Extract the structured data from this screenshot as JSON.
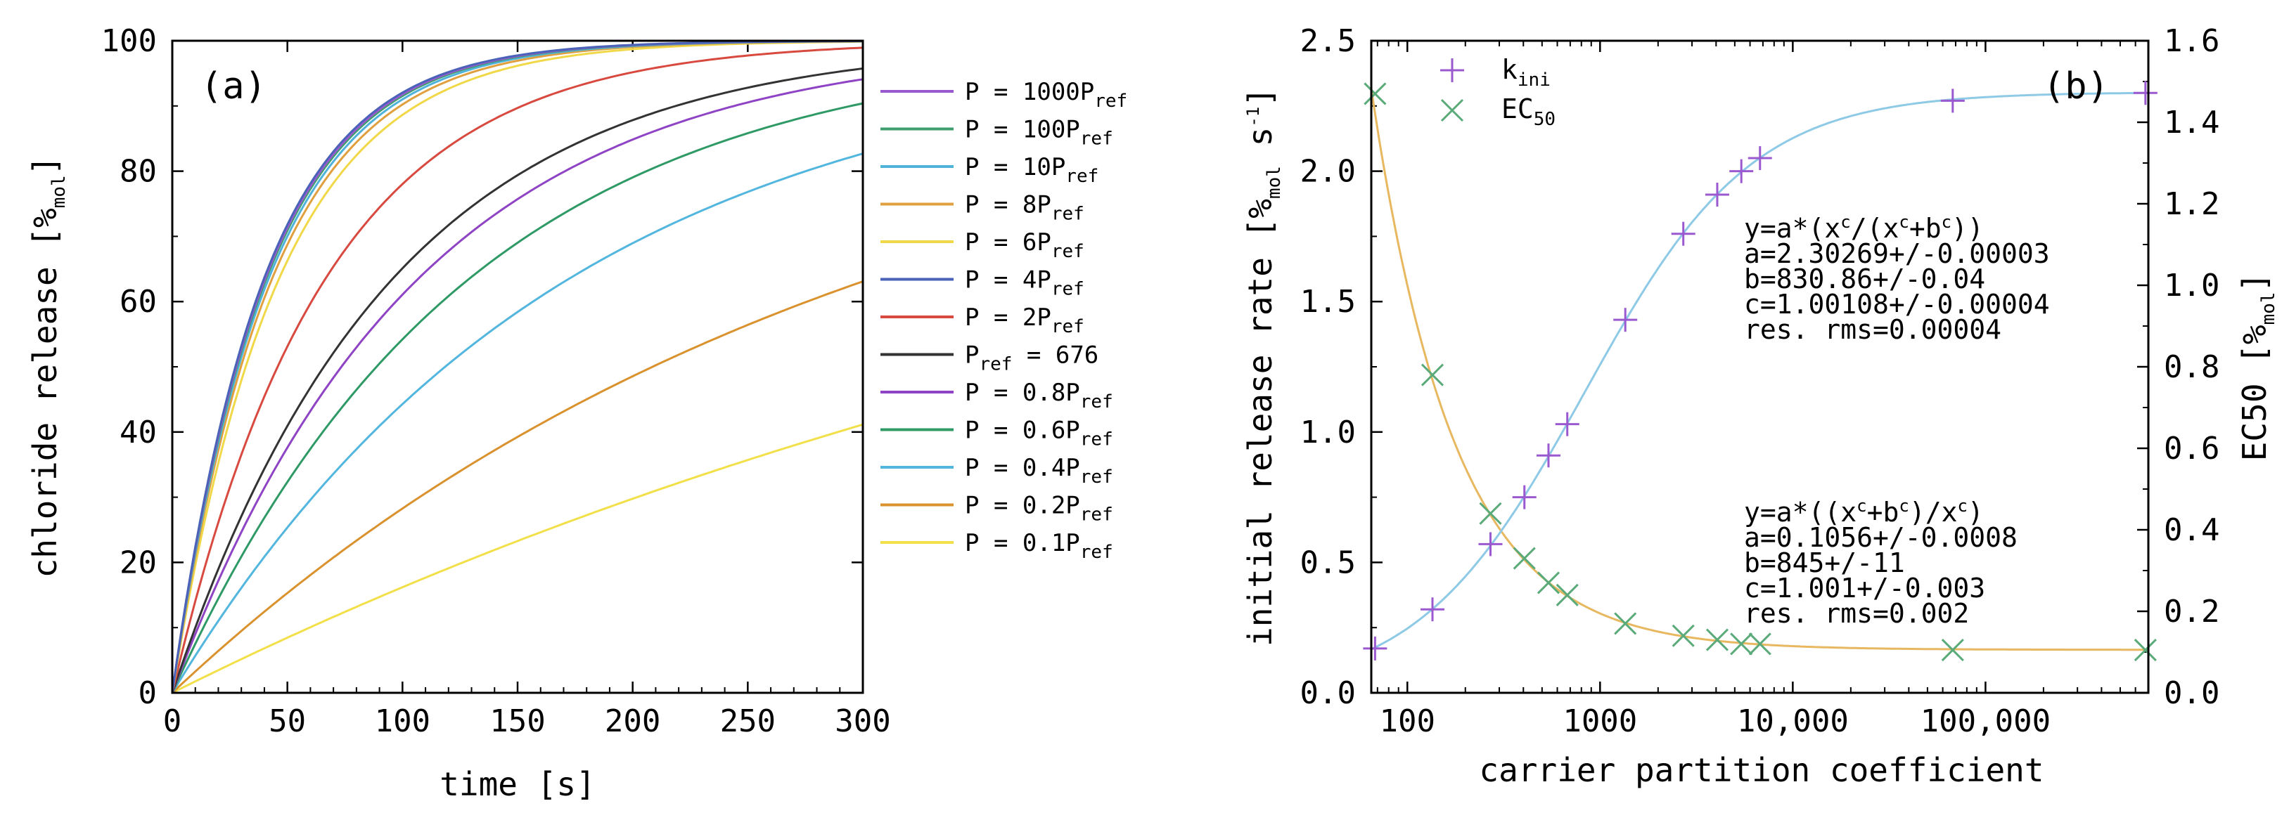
{
  "chart_data": [
    {
      "type": "line",
      "panel_label": "(a)",
      "xlabel": "time [s]",
      "ylabel_main": "chloride release [%",
      "ylabel_sub": "mol",
      "ylabel_end": "]",
      "xlim": [
        0,
        300
      ],
      "ylim": [
        0,
        100
      ],
      "xticks": [
        0,
        50,
        100,
        150,
        200,
        250,
        300
      ],
      "yticks": [
        0,
        20,
        40,
        60,
        80,
        100
      ],
      "xtick_labels": [
        "0",
        "50",
        "100",
        "150",
        "200",
        "250",
        "300"
      ],
      "ytick_labels": [
        "0",
        "20",
        "40",
        "60",
        "80",
        "100"
      ],
      "legend_position": "outside-right",
      "series": [
        {
          "main": "P = 1000P",
          "sub": "ref",
          "color": "#9b59d0",
          "tau": 40
        },
        {
          "main": "P = 100P",
          "sub": "ref",
          "color": "#3f9e6e",
          "tau": 40.5
        },
        {
          "main": "P = 10P",
          "sub": "ref",
          "color": "#4fb3d9",
          "tau": 41.5
        },
        {
          "main": "P = 8P",
          "sub": "ref",
          "color": "#e0a040",
          "tau": 43
        },
        {
          "main": "P = 6P",
          "sub": "ref",
          "color": "#f0d848",
          "tau": 46
        },
        {
          "main": "P = 4P",
          "sub": "ref",
          "color": "#4a62b8",
          "tau": 39.5
        },
        {
          "main": "P = 2P",
          "sub": "ref",
          "color": "#d84a40",
          "tau": 66
        },
        {
          "main": "P",
          "sub": "ref",
          "after": " = 676",
          "color": "#333333",
          "tau": 95
        },
        {
          "main": "P = 0.8P",
          "sub": "ref",
          "color": "#8e44c4",
          "tau": 106
        },
        {
          "main": "P = 0.6P",
          "sub": "ref",
          "color": "#2f9a66",
          "tau": 128
        },
        {
          "main": "P = 0.4P",
          "sub": "ref",
          "color": "#52b6de",
          "tau": 171
        },
        {
          "main": "P = 0.2P",
          "sub": "ref",
          "color": "#d9922e",
          "tau": 301
        },
        {
          "main": "P = 0.1P",
          "sub": "ref",
          "color": "#f2e04a",
          "tau": 566
        }
      ]
    },
    {
      "type": "scatter",
      "panel_label": "(b)",
      "xlabel": "carrier partition coefficient",
      "x_scale": "log",
      "xlim": [
        65,
        700000
      ],
      "xticks": [
        100,
        1000,
        10000,
        100000
      ],
      "xtick_labels": [
        "100",
        "1000",
        "10,000",
        "100,000"
      ],
      "y_left": {
        "label_main": "initial release rate [%",
        "label_sub": "mol",
        "label_mid": " s",
        "label_sup": "-1",
        "label_end": "]",
        "lim": [
          0,
          2.5
        ],
        "ticks": [
          0,
          0.5,
          1,
          1.5,
          2,
          2.5
        ],
        "tick_labels": [
          "0.0",
          "0.5",
          "1.0",
          "1.5",
          "2.0",
          "2.5"
        ]
      },
      "y_right": {
        "label_main": "EC50 [%",
        "label_sub": "mol",
        "label_end": "]",
        "lim": [
          0,
          1.6
        ],
        "ticks": [
          0,
          0.2,
          0.4,
          0.6,
          0.8,
          1.0,
          1.2,
          1.4,
          1.6
        ],
        "tick_labels": [
          "0.0",
          "0.2",
          "0.4",
          "0.6",
          "0.8",
          "1.0",
          "1.2",
          "1.4",
          "1.6"
        ]
      },
      "legend_position": "top-left",
      "series": [
        {
          "name_main": "k",
          "name_sub": "ini",
          "marker": "+",
          "axis": "left",
          "color": "#9b59d0",
          "fit_color": "#8ecae6",
          "x": [
            68,
            135,
            270,
            405,
            540,
            676,
            1352,
            2704,
            4056,
            5408,
            6760,
            67600,
            676000
          ],
          "y": [
            0.17,
            0.32,
            0.57,
            0.75,
            0.91,
            1.03,
            1.43,
            1.76,
            1.91,
            2.0,
            2.05,
            2.27,
            2.3
          ],
          "fit": {
            "a": 2.30269,
            "b": 830.86,
            "c": 1.00108
          }
        },
        {
          "name_main": "EC",
          "name_sub": "50",
          "marker": "x",
          "axis": "right",
          "color": "#5aaa7a",
          "fit_color": "#e8b860",
          "x": [
            68,
            135,
            270,
            405,
            540,
            676,
            1352,
            2704,
            4056,
            5408,
            6760,
            67600,
            676000
          ],
          "y": [
            1.47,
            0.78,
            0.44,
            0.33,
            0.27,
            0.24,
            0.17,
            0.14,
            0.13,
            0.12,
            0.12,
            0.105,
            0.105
          ],
          "fit": {
            "a": 0.1056,
            "b": 845,
            "c": 1.001
          }
        }
      ],
      "annotations": {
        "fit1": {
          "l1_a": "y=a*(x",
          "l1_s1": "c",
          "l1_b": "/(x",
          "l1_s2": "c",
          "l1_c": "+b",
          "l1_s3": "c",
          "l1_d": "))",
          "l2": "a=2.30269+/-0.00003",
          "l3": "b=830.86+/-0.04",
          "l4": "c=1.00108+/-0.00004",
          "l5": "res. rms=0.00004"
        },
        "fit2": {
          "l1_a": "y=a*((x",
          "l1_s1": "c",
          "l1_b": "+b",
          "l1_s2": "c",
          "l1_c": ")/x",
          "l1_s3": "c",
          "l1_d": ")",
          "l2": "a=0.1056+/-0.0008",
          "l3": "b=845+/-11",
          "l4": "c=1.001+/-0.003",
          "l5": "res. rms=0.002"
        }
      }
    }
  ]
}
